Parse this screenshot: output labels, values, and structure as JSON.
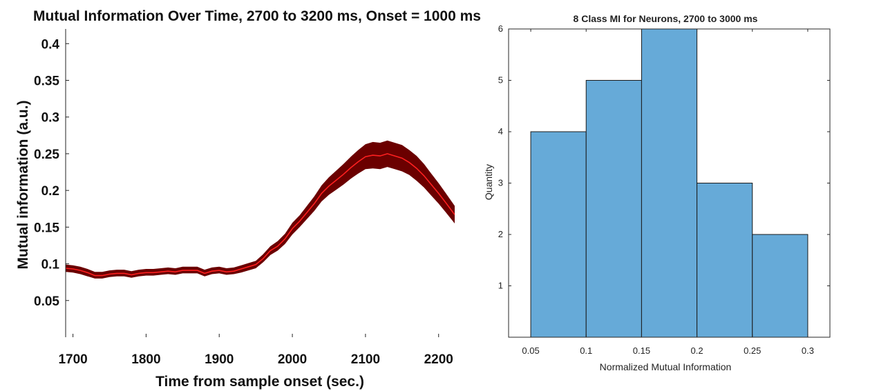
{
  "chart_data": [
    {
      "type": "line",
      "title": "Mutual Information Over Time, 2700 to 3200 ms, Onset = 1000 ms",
      "xlabel": "Time from sample onset (sec.)",
      "ylabel": "Mutual information  (a.u.)",
      "xlim": [
        1690,
        2222
      ],
      "ylim": [
        0,
        0.42
      ],
      "xticks": [
        "1700",
        "1800",
        "1900",
        "2000",
        "2100",
        "2200"
      ],
      "yticks": [
        "0.05",
        "0.1",
        "0.15",
        "0.2",
        "0.25",
        "0.3",
        "0.35",
        "0.4"
      ],
      "x": [
        1690,
        1700,
        1710,
        1720,
        1730,
        1740,
        1750,
        1760,
        1770,
        1780,
        1790,
        1800,
        1810,
        1820,
        1830,
        1840,
        1850,
        1860,
        1870,
        1880,
        1890,
        1900,
        1910,
        1920,
        1930,
        1940,
        1950,
        1960,
        1970,
        1980,
        1990,
        2000,
        2010,
        2020,
        2030,
        2040,
        2050,
        2060,
        2070,
        2080,
        2090,
        2100,
        2110,
        2120,
        2130,
        2140,
        2150,
        2160,
        2170,
        2180,
        2190,
        2200,
        2210,
        2222
      ],
      "series": [
        {
          "mean": [
            0.094,
            0.093,
            0.091,
            0.088,
            0.084,
            0.084,
            0.086,
            0.087,
            0.087,
            0.085,
            0.087,
            0.088,
            0.088,
            0.089,
            0.09,
            0.089,
            0.091,
            0.091,
            0.091,
            0.087,
            0.09,
            0.091,
            0.089,
            0.09,
            0.093,
            0.096,
            0.099,
            0.107,
            0.118,
            0.124,
            0.134,
            0.148,
            0.158,
            0.17,
            0.182,
            0.196,
            0.206,
            0.214,
            0.222,
            0.231,
            0.239,
            0.246,
            0.248,
            0.247,
            0.25,
            0.247,
            0.244,
            0.238,
            0.23,
            0.22,
            0.208,
            0.196,
            0.183,
            0.167
          ],
          "lower": [
            0.089,
            0.088,
            0.086,
            0.083,
            0.08,
            0.08,
            0.082,
            0.083,
            0.083,
            0.081,
            0.083,
            0.084,
            0.084,
            0.085,
            0.086,
            0.085,
            0.087,
            0.087,
            0.087,
            0.083,
            0.086,
            0.087,
            0.085,
            0.086,
            0.088,
            0.091,
            0.094,
            0.102,
            0.112,
            0.118,
            0.127,
            0.14,
            0.15,
            0.161,
            0.172,
            0.185,
            0.194,
            0.201,
            0.208,
            0.216,
            0.223,
            0.229,
            0.23,
            0.229,
            0.232,
            0.229,
            0.226,
            0.221,
            0.213,
            0.204,
            0.193,
            0.182,
            0.17,
            0.155
          ],
          "upper": [
            0.099,
            0.098,
            0.096,
            0.093,
            0.089,
            0.089,
            0.091,
            0.092,
            0.092,
            0.09,
            0.092,
            0.093,
            0.093,
            0.094,
            0.095,
            0.094,
            0.096,
            0.096,
            0.096,
            0.092,
            0.095,
            0.096,
            0.094,
            0.095,
            0.098,
            0.101,
            0.104,
            0.113,
            0.124,
            0.131,
            0.141,
            0.156,
            0.166,
            0.179,
            0.192,
            0.207,
            0.218,
            0.227,
            0.236,
            0.246,
            0.255,
            0.263,
            0.266,
            0.265,
            0.268,
            0.265,
            0.262,
            0.255,
            0.247,
            0.236,
            0.223,
            0.21,
            0.196,
            0.179
          ]
        }
      ],
      "colors": {
        "band": "#6b0000",
        "mean_line": "#ff2020"
      },
      "grid": false
    },
    {
      "type": "bar",
      "title": "8 Class MI for Neurons, 2700 to 3000 ms",
      "xlabel": "Normalized Mutual Information",
      "ylabel": "Quantity",
      "bins": [
        [
          0.05,
          0.1
        ],
        [
          0.1,
          0.15
        ],
        [
          0.15,
          0.2
        ],
        [
          0.2,
          0.25
        ],
        [
          0.25,
          0.3
        ]
      ],
      "values": [
        4,
        5,
        6,
        3,
        2
      ],
      "xlim": [
        0.03,
        0.32
      ],
      "ylim": [
        0,
        6
      ],
      "xticks": [
        "0.05",
        "0.1",
        "0.15",
        "0.2",
        "0.25",
        "0.3"
      ],
      "yticks": [
        "1",
        "2",
        "3",
        "4",
        "5",
        "6"
      ],
      "colors": {
        "bar": "#66aad8",
        "edge": "#1a1a1a"
      },
      "grid": false
    }
  ]
}
